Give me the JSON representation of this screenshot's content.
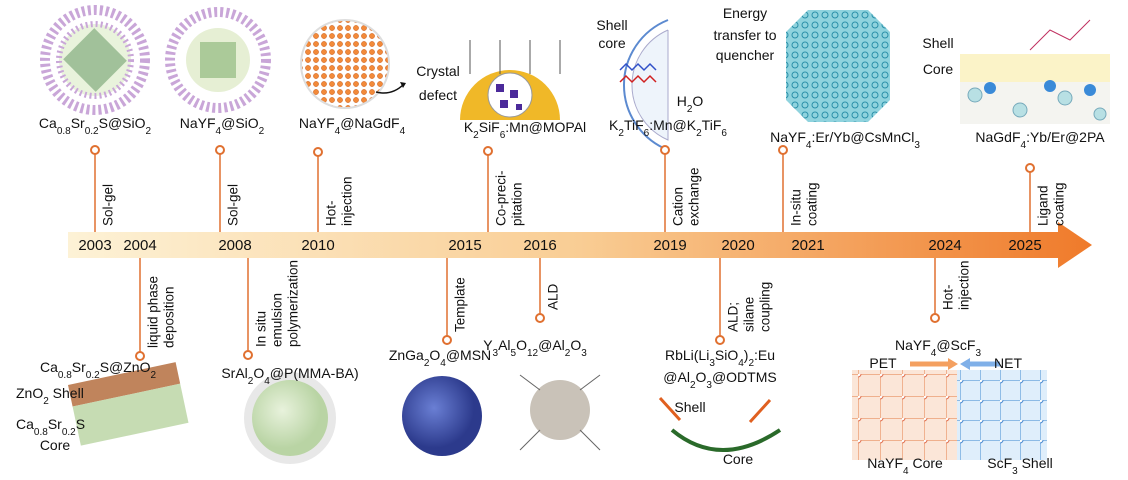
{
  "timeline": {
    "years": [
      "2003",
      "2004",
      "2008",
      "2010",
      "2015",
      "2016",
      "2019",
      "2020",
      "2021",
      "2024",
      "2025"
    ]
  },
  "methods": [
    {
      "lines": [
        "Sol-gel"
      ]
    },
    {
      "lines": [
        "Sol-gel"
      ]
    },
    {
      "lines": [
        "Hot-",
        "injection"
      ]
    },
    {
      "lines": [
        "Co-preci-",
        "pitation"
      ]
    },
    {
      "lines": [
        "Cation",
        "exchange"
      ]
    },
    {
      "lines": [
        "In-situ",
        "coating"
      ]
    },
    {
      "lines": [
        "Ligand",
        "coating"
      ]
    },
    {
      "lines": [
        "liquid phase",
        "deposition"
      ]
    },
    {
      "lines": [
        "In situ",
        "emulsion",
        "polymerization"
      ]
    },
    {
      "lines": [
        "Template"
      ]
    },
    {
      "lines": [
        "ALD"
      ]
    },
    {
      "lines": [
        "ALD;",
        "silane",
        "coupling"
      ]
    },
    {
      "lines": [
        "Hot-",
        "injection"
      ]
    }
  ],
  "formulas": [
    [
      "Ca",
      "0.8",
      "Sr",
      "0.2",
      "S@SiO",
      "2"
    ],
    [
      "NaYF",
      "4",
      "@SiO",
      "2"
    ],
    [
      "NaYF",
      "4",
      "@NaGdF",
      "4"
    ],
    [
      "K",
      "2",
      "SiF",
      "6",
      ":Mn@MOPAl"
    ],
    [
      "K",
      "2",
      "TiF",
      "6",
      ":Mn@K",
      "2",
      "TiF",
      "6"
    ],
    [
      "NaYF",
      "4",
      ":Er/Yb@CsMnCl",
      "3"
    ],
    [
      "NaGdF",
      "4",
      ":Yb/Er@2PA"
    ],
    [
      "H",
      "2",
      "O"
    ],
    [
      "Ca",
      "0.8",
      "Sr",
      "0.2",
      "S@ZnO",
      "2"
    ],
    [
      "ZnO",
      "2",
      " Shell"
    ],
    [
      "Ca",
      "0.8",
      "Sr",
      "0.2",
      "S"
    ],
    [
      "SrAl",
      "2",
      "O",
      "4",
      "@P(MMA-BA)"
    ],
    [
      "ZnGa",
      "2",
      "O",
      "4",
      "@MSN"
    ],
    [
      "Y",
      "3",
      "Al",
      "5",
      "O",
      "12",
      "@Al",
      "2",
      "O",
      "3"
    ],
    [
      "RbLi(Li",
      "3",
      "SiO",
      "4",
      ")",
      "2",
      ":Eu"
    ],
    [
      "@Al",
      "2",
      "O",
      "3",
      "@ODTMS"
    ],
    [
      "NaYF",
      "4",
      "@ScF",
      "3"
    ],
    [
      "NaYF",
      "4",
      " Core"
    ],
    [
      "ScF",
      "3",
      " Shell"
    ]
  ],
  "labels": [
    "Crystal",
    "defect",
    "Shell",
    "core",
    "Energy",
    "transfer to",
    "quencher",
    "Shell",
    "Core",
    "Core",
    "Shell",
    "Core",
    "PET",
    "NET"
  ]
}
